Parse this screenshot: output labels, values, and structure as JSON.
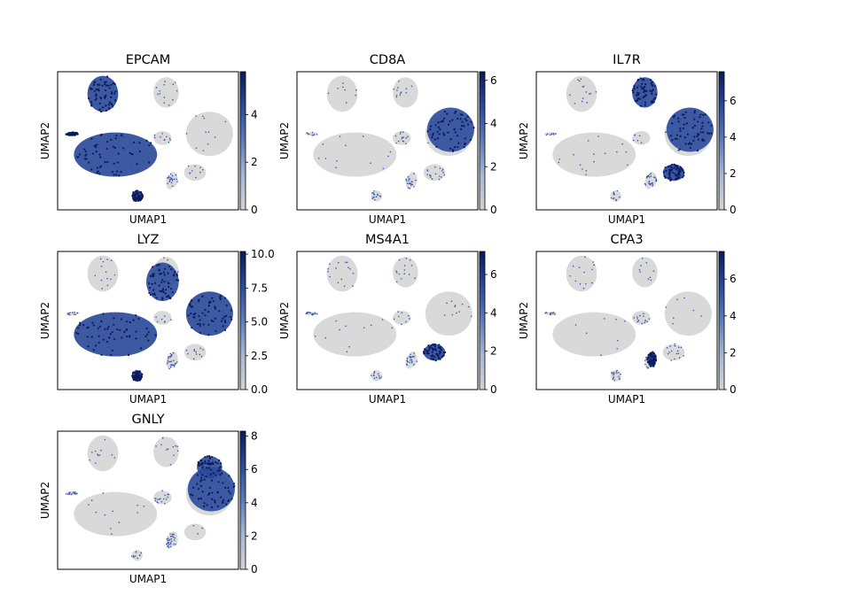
{
  "colors": {
    "background": "#ffffff",
    "cell_gray": "#d9d9d9",
    "colormap": [
      "#d3d3d3",
      "#a8b7d6",
      "#5b7cbd",
      "#2a4a9b",
      "#0b1a5c"
    ],
    "axes_frame": "#000000"
  },
  "chart_data": [
    {
      "type": "scatter",
      "title": "EPCAM",
      "xlabel": "UMAP1",
      "ylabel": "UMAP2",
      "colorbar": {
        "min": 0,
        "max": 5.8,
        "ticks": [
          "0",
          "2",
          "4"
        ],
        "tick_values": [
          0,
          2,
          4
        ]
      },
      "highlighted_clusters": [
        "epithelial-top-left",
        "epithelial-large",
        "epithelial-thin-left",
        "small-bottom"
      ]
    },
    {
      "type": "scatter",
      "title": "CD8A",
      "xlabel": "UMAP1",
      "ylabel": "UMAP2",
      "colorbar": {
        "min": 0,
        "max": 6.4,
        "ticks": [
          "0",
          "2",
          "4",
          "6"
        ],
        "tick_values": [
          0,
          2,
          4,
          6
        ]
      },
      "highlighted_clusters": [
        "tcell-right"
      ]
    },
    {
      "type": "scatter",
      "title": "IL7R",
      "xlabel": "UMAP1",
      "ylabel": "UMAP2",
      "colorbar": {
        "min": 0,
        "max": 7.6,
        "ticks": [
          "0",
          "2",
          "4",
          "6"
        ],
        "tick_values": [
          0,
          2,
          4,
          6
        ]
      },
      "highlighted_clusters": [
        "tcell-right",
        "center-top",
        "bcell"
      ]
    },
    {
      "type": "scatter",
      "title": "LYZ",
      "xlabel": "UMAP1",
      "ylabel": "UMAP2",
      "colorbar": {
        "min": 0,
        "max": 10.2,
        "ticks": [
          "0.0",
          "2.5",
          "5.0",
          "7.5",
          "10.0"
        ],
        "tick_values": [
          0,
          2.5,
          5,
          7.5,
          10
        ]
      },
      "highlighted_clusters": [
        "myeloid-center-top",
        "epithelial-large",
        "right-large",
        "small-bottom"
      ]
    },
    {
      "type": "scatter",
      "title": "MS4A1",
      "xlabel": "UMAP1",
      "ylabel": "UMAP2",
      "colorbar": {
        "min": 0,
        "max": 7.2,
        "ticks": [
          "0",
          "2",
          "4",
          "6"
        ],
        "tick_values": [
          0,
          2,
          4,
          6
        ]
      },
      "highlighted_clusters": [
        "bcell"
      ]
    },
    {
      "type": "scatter",
      "title": "CPA3",
      "xlabel": "UMAP1",
      "ylabel": "UMAP2",
      "colorbar": {
        "min": 0,
        "max": 7.5,
        "ticks": [
          "0",
          "2",
          "4",
          "6"
        ],
        "tick_values": [
          0,
          2,
          4,
          6
        ]
      },
      "highlighted_clusters": [
        "mast"
      ]
    },
    {
      "type": "scatter",
      "title": "GNLY",
      "xlabel": "UMAP1",
      "ylabel": "UMAP2",
      "colorbar": {
        "min": 0,
        "max": 8.3,
        "ticks": [
          "0",
          "2",
          "4",
          "6",
          "8"
        ],
        "tick_values": [
          0,
          2,
          4,
          6,
          8
        ]
      },
      "highlighted_clusters": [
        "nk-top-right",
        "tcell-right"
      ]
    }
  ]
}
